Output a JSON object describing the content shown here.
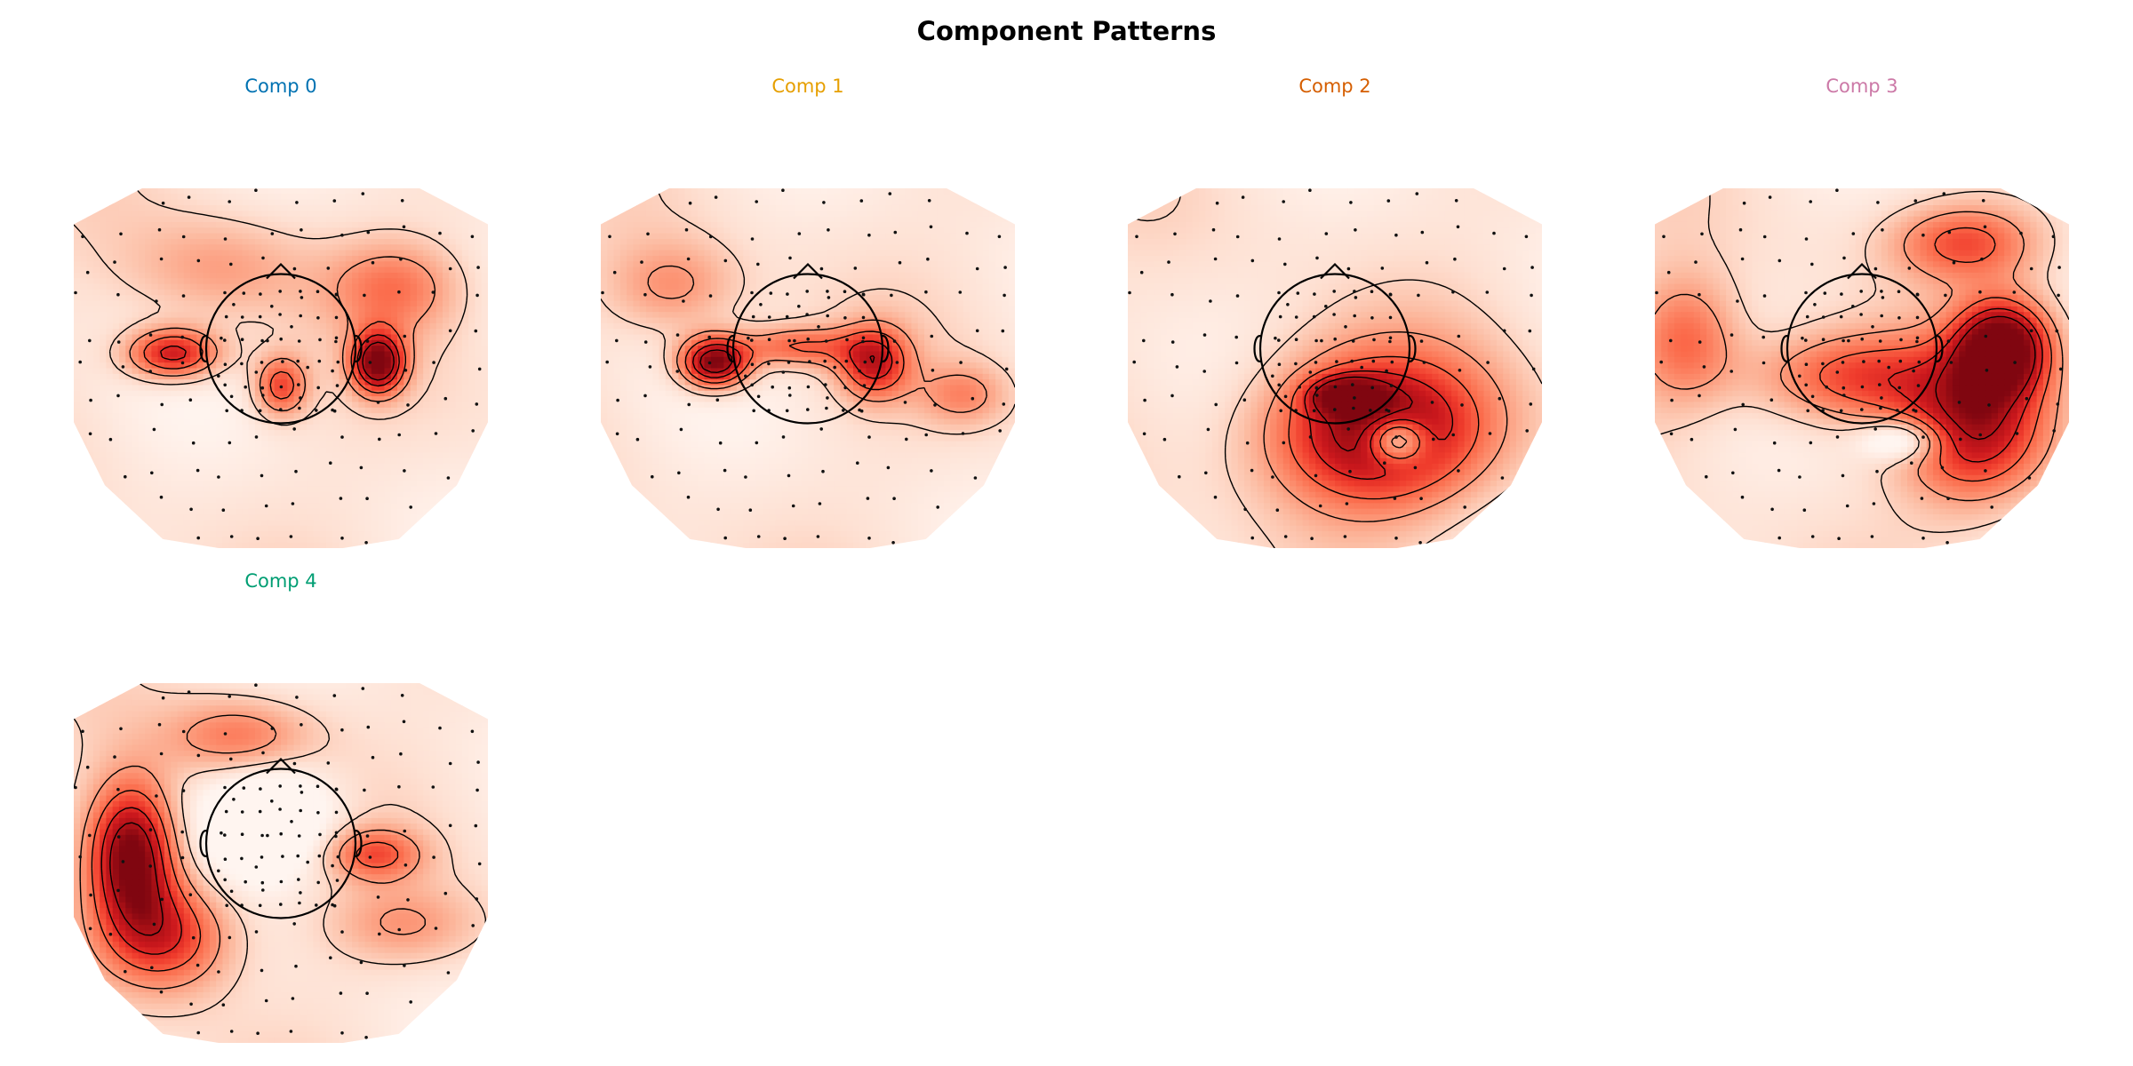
{
  "chart_data": {
    "type": "heatmap",
    "kind": "eeg-topomap-grid",
    "title": "Component Patterns",
    "colormap": "Reds",
    "contour_color": "#000000",
    "sensor_marker": "dot",
    "head_outline": true,
    "panels": [
      {
        "name": "Comp 0",
        "title_color": "#0072B2",
        "blobs": [
          {
            "x": -0.52,
            "y": 0.08,
            "amp": 0.75,
            "sx": 0.16,
            "sy": 0.1
          },
          {
            "x": 0.47,
            "y": 0.03,
            "amp": 0.95,
            "sx": 0.09,
            "sy": 0.12
          },
          {
            "x": 0.0,
            "y": -0.1,
            "amp": 0.55,
            "sx": 0.09,
            "sy": 0.12
          },
          {
            "x": 0.55,
            "y": 0.45,
            "amp": 0.35,
            "sx": 0.22,
            "sy": 0.18
          },
          {
            "x": -0.3,
            "y": 0.55,
            "amp": 0.25,
            "sx": 0.3,
            "sy": 0.2
          }
        ]
      },
      {
        "name": "Comp 1",
        "title_color": "#E69F00",
        "blobs": [
          {
            "x": -0.45,
            "y": 0.03,
            "amp": 1.0,
            "sx": 0.12,
            "sy": 0.1
          },
          {
            "x": 0.32,
            "y": 0.03,
            "amp": 0.65,
            "sx": 0.12,
            "sy": 0.14
          },
          {
            "x": -0.05,
            "y": 0.12,
            "amp": 0.45,
            "sx": 0.2,
            "sy": 0.08
          },
          {
            "x": -0.65,
            "y": 0.45,
            "amp": 0.3,
            "sx": 0.22,
            "sy": 0.18
          },
          {
            "x": 0.75,
            "y": -0.15,
            "amp": 0.3,
            "sx": 0.15,
            "sy": 0.12
          }
        ]
      },
      {
        "name": "Comp 2",
        "title_color": "#D55E00",
        "blobs": [
          {
            "x": 0.2,
            "y": -0.35,
            "amp": 0.95,
            "sx": 0.38,
            "sy": 0.3
          },
          {
            "x": 0.05,
            "y": -0.15,
            "amp": 0.6,
            "sx": 0.12,
            "sy": 0.07
          },
          {
            "x": 0.3,
            "y": -0.4,
            "amp": -0.7,
            "sx": 0.1,
            "sy": 0.09
          }
        ]
      },
      {
        "name": "Comp 3",
        "title_color": "#CC79A7",
        "blobs": [
          {
            "x": 0.68,
            "y": 0.12,
            "amp": 1.0,
            "sx": 0.16,
            "sy": 0.18
          },
          {
            "x": 0.55,
            "y": -0.35,
            "amp": 0.75,
            "sx": 0.25,
            "sy": 0.28
          },
          {
            "x": -0.05,
            "y": -0.05,
            "amp": 0.55,
            "sx": 0.35,
            "sy": 0.18
          },
          {
            "x": 0.2,
            "y": -0.4,
            "amp": -0.45,
            "sx": 0.14,
            "sy": 0.08
          },
          {
            "x": -0.85,
            "y": 0.15,
            "amp": 0.45,
            "sx": 0.18,
            "sy": 0.25
          },
          {
            "x": 0.5,
            "y": 0.7,
            "amp": 0.5,
            "sx": 0.25,
            "sy": 0.15
          }
        ]
      },
      {
        "name": "Comp 4",
        "title_color": "#009E73",
        "blobs": [
          {
            "x": -0.72,
            "y": 0.05,
            "amp": 1.0,
            "sx": 0.15,
            "sy": 0.28
          },
          {
            "x": -0.55,
            "y": -0.4,
            "amp": 0.65,
            "sx": 0.22,
            "sy": 0.22
          },
          {
            "x": 0.45,
            "y": 0.05,
            "amp": 0.45,
            "sx": 0.16,
            "sy": 0.1
          },
          {
            "x": -0.05,
            "y": 0.25,
            "amp": -0.4,
            "sx": 0.22,
            "sy": 0.22
          },
          {
            "x": 0.6,
            "y": -0.35,
            "amp": 0.25,
            "sx": 0.25,
            "sy": 0.15
          },
          {
            "x": -0.2,
            "y": 0.7,
            "amp": 0.4,
            "sx": 0.25,
            "sy": 0.15
          }
        ]
      }
    ]
  }
}
